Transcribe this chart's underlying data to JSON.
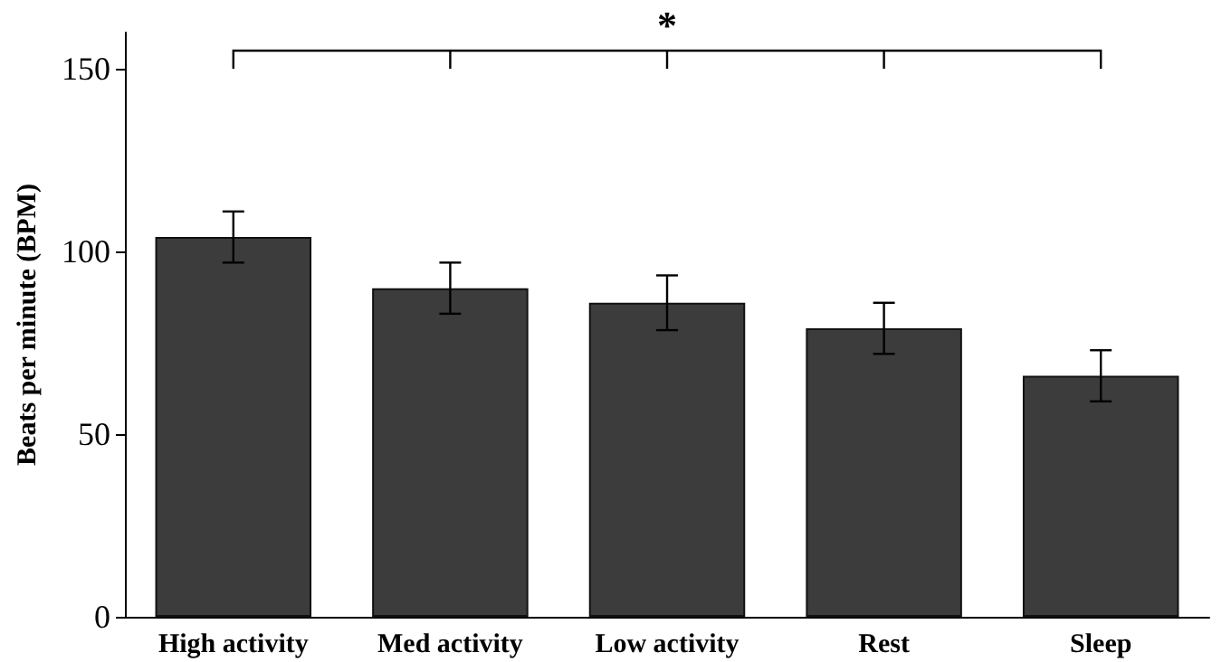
{
  "chart_data": {
    "type": "bar",
    "ylabel": "Beats per minute (BPM)",
    "categories": [
      "High activity",
      "Med activity",
      "Low activity",
      "Rest",
      "Sleep"
    ],
    "values": [
      104,
      90,
      86,
      79,
      66
    ],
    "errors": [
      7,
      7,
      7.5,
      7,
      7
    ],
    "color": "#3c3c3c",
    "ylim": [
      0,
      160
    ],
    "yticks": [
      0,
      50,
      100,
      150
    ],
    "annotations": [
      "*"
    ],
    "grid": false
  }
}
